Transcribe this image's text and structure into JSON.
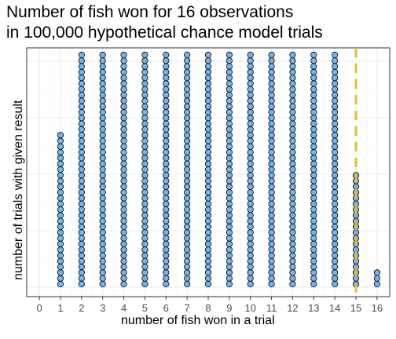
{
  "chart_data": {
    "type": "scatter",
    "style": "dot plot",
    "title_lines": [
      "Number of fish won for 16 observations",
      "in 100,000 hypothetical chance model trials"
    ],
    "xlabel": "number of fish won in a trial",
    "ylabel": "number of trials with given result",
    "x_ticks": [
      "0",
      "1",
      "2",
      "3",
      "4",
      "5",
      "6",
      "7",
      "8",
      "9",
      "10",
      "11",
      "12",
      "13",
      "14",
      "15",
      "16"
    ],
    "xlim": [
      -0.6,
      16.6
    ],
    "stacks": [
      {
        "x": 0,
        "dots": 0
      },
      {
        "x": 1,
        "dots": 27
      },
      {
        "x": 2,
        "dots": 43
      },
      {
        "x": 3,
        "dots": 43
      },
      {
        "x": 4,
        "dots": 43
      },
      {
        "x": 5,
        "dots": 43
      },
      {
        "x": 6,
        "dots": 43
      },
      {
        "x": 7,
        "dots": 43
      },
      {
        "x": 8,
        "dots": 43
      },
      {
        "x": 9,
        "dots": 43
      },
      {
        "x": 10,
        "dots": 43
      },
      {
        "x": 11,
        "dots": 43
      },
      {
        "x": 12,
        "dots": 43
      },
      {
        "x": 13,
        "dots": 43
      },
      {
        "x": 14,
        "dots": 43
      },
      {
        "x": 15,
        "dots": 20
      },
      {
        "x": 16,
        "dots": 3
      }
    ],
    "reference_line": {
      "x": 15,
      "style": "dashed",
      "color": "#E6BE2E"
    },
    "dot_fill": "#74B4E8",
    "dot_stroke": "#000000",
    "grid": true,
    "background": "#ffffff"
  }
}
